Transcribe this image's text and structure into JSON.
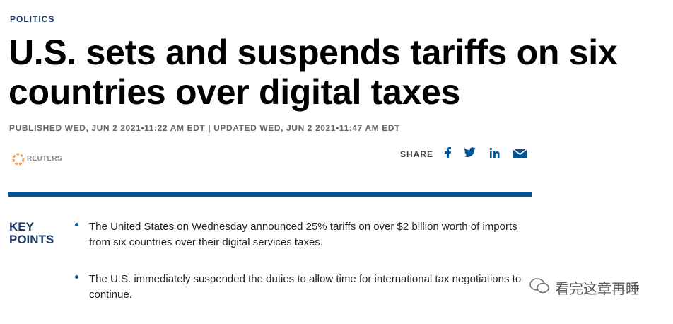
{
  "header": {
    "section": "POLITICS",
    "title": "U.S. sets and suspends tariffs on six countries over digital taxes",
    "meta": "PUBLISHED WED, JUN 2 2021•11:22 AM EDT | UPDATED WED, JUN 2 2021•11:47 AM EDT",
    "source": "REUTERS",
    "share": "SHARE"
  },
  "key_points": {
    "label": "KEY POINTS",
    "items": [
      "The United States on Wednesday announced 25% tariffs on over $2 billion worth of imports from six countries over their digital services taxes.",
      "The U.S. immediately suspended the duties to allow time for international tax negotiations to continue."
    ]
  },
  "watermark": "看完这章再睡"
}
